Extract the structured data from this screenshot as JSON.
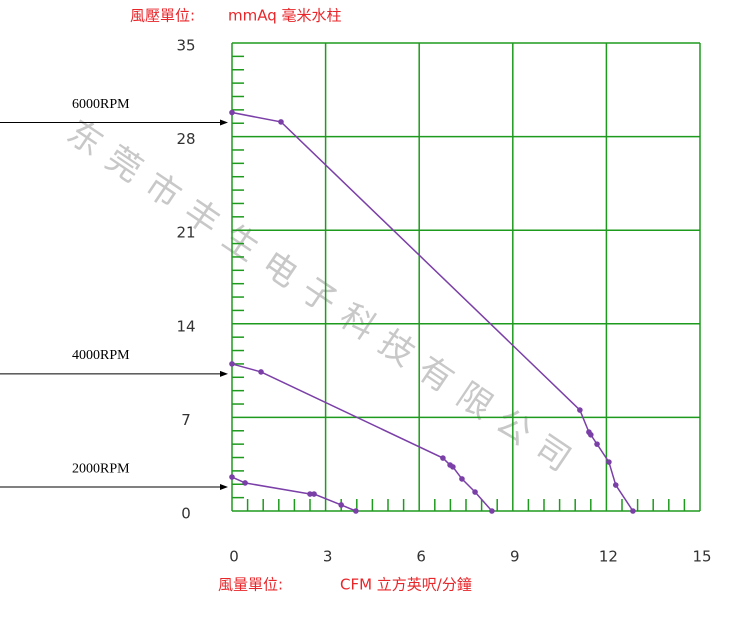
{
  "chart_data": {
    "type": "line",
    "ylabel": "風壓單位:",
    "yunit": "mmAq 毫米水柱",
    "xlabel": "風量單位:",
    "xunit": "CFM 立方英呎/分鐘",
    "watermark": "东莞市丰生电子科技有限公司",
    "xlim": [
      0,
      15
    ],
    "xticks": [
      0,
      3,
      6,
      9,
      12,
      15
    ],
    "ylim": [
      0,
      35
    ],
    "yticks": [
      0,
      7,
      14,
      21,
      28,
      35
    ],
    "grid": true,
    "grid_color": "#1e9a1e",
    "series": [
      {
        "name": "6000RPM",
        "color": "#7b3fa8",
        "x": [
          0,
          1.57,
          11.15,
          11.44,
          11.5,
          11.7,
          12.08,
          12.3,
          12.85
        ],
        "values": [
          29.8,
          29.1,
          7.55,
          5.9,
          5.7,
          5.0,
          3.66,
          1.94,
          0
        ]
      },
      {
        "name": "4000RPM",
        "color": "#7b3fa8",
        "x": [
          0,
          0.93,
          6.76,
          6.99,
          7.08,
          7.37,
          7.79,
          8.33
        ],
        "values": [
          11.0,
          10.4,
          3.96,
          3.44,
          3.3,
          2.4,
          1.42,
          0
        ]
      },
      {
        "name": "2000RPM",
        "color": "#7b3fa8",
        "x": [
          0,
          0.42,
          2.5,
          2.63,
          3.5,
          3.97
        ],
        "values": [
          2.54,
          2.1,
          1.27,
          1.27,
          0.45,
          0
        ]
      }
    ]
  }
}
